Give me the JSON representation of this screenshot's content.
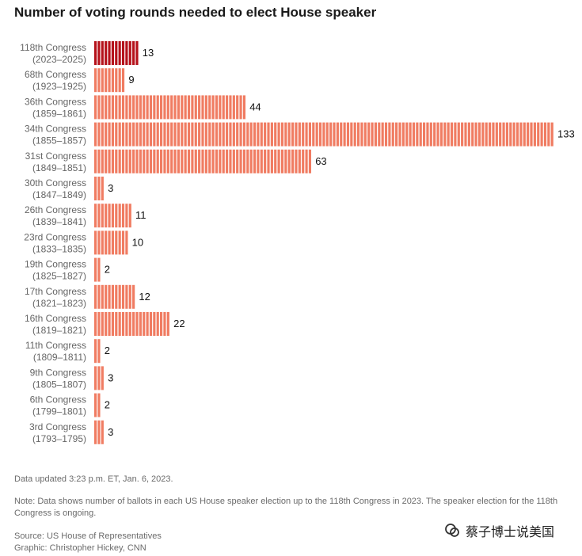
{
  "chart_data": {
    "type": "bar",
    "orientation": "horizontal",
    "title": "Number of voting rounds needed to elect House speaker",
    "categories": [
      {
        "name": "118th Congress",
        "years": "(2023–2025)"
      },
      {
        "name": "68th Congress",
        "years": "(1923–1925)"
      },
      {
        "name": "36th Congress",
        "years": "(1859–1861)"
      },
      {
        "name": "34th Congress",
        "years": "(1855–1857)"
      },
      {
        "name": "31st Congress",
        "years": "(1849–1851)"
      },
      {
        "name": "30th Congress",
        "years": "(1847–1849)"
      },
      {
        "name": "26th Congress",
        "years": "(1839–1841)"
      },
      {
        "name": "23rd Congress",
        "years": "(1833–1835)"
      },
      {
        "name": "19th Congress",
        "years": "(1825–1827)"
      },
      {
        "name": "17th Congress",
        "years": "(1821–1823)"
      },
      {
        "name": "16th Congress",
        "years": "(1819–1821)"
      },
      {
        "name": "11th Congress",
        "years": "(1809–1811)"
      },
      {
        "name": "9th Congress",
        "years": "(1805–1807)"
      },
      {
        "name": "6th Congress",
        "years": "(1799–1801)"
      },
      {
        "name": "3rd Congress",
        "years": "(1793–1795)"
      }
    ],
    "values": [
      13,
      9,
      44,
      133,
      63,
      3,
      11,
      10,
      2,
      12,
      22,
      2,
      3,
      2,
      3
    ],
    "xlim": [
      0,
      133
    ],
    "grid": false,
    "highlight_index": 0,
    "colors": {
      "highlight": "#b5121b",
      "default": "#f07c62"
    }
  },
  "footer": {
    "updated": "Data updated 3:23 p.m. ET, Jan. 6, 2023.",
    "note": "Note: Data shows number of ballots in each US House speaker election up to the 118th Congress in 2023. The speaker election for the 118th Congress is ongoing.",
    "source": "Source: US House of Representatives",
    "graphic": "Graphic: Christopher Hickey, CNN"
  },
  "watermark": {
    "text": "蔡子博士说美国",
    "icon": "wechat-search-icon"
  }
}
